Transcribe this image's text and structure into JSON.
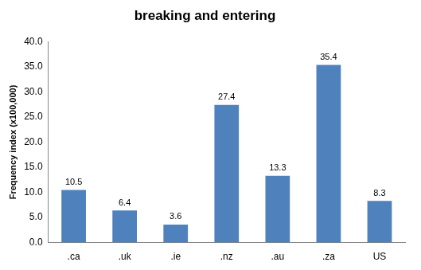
{
  "chart_data": {
    "type": "bar",
    "title": "breaking and entering",
    "y_label": "Frequency index (x100,000)",
    "categories": [
      ".ca",
      ".uk",
      ".ie",
      ".nz",
      ".au",
      ".za",
      "US"
    ],
    "values": [
      10.5,
      6.4,
      3.6,
      27.4,
      13.3,
      35.4,
      8.3
    ],
    "color": "#4f81bd",
    "ylim": [
      0,
      40
    ],
    "yticks": [
      {
        "value": 0,
        "label": "0.0"
      },
      {
        "value": 5,
        "label": "5.0"
      },
      {
        "value": 10,
        "label": "10.0"
      },
      {
        "value": 15,
        "label": "15.0"
      },
      {
        "value": 20,
        "label": "20.0"
      },
      {
        "value": 25,
        "label": "25.0"
      },
      {
        "value": 30,
        "label": "30.0"
      },
      {
        "value": 35,
        "label": "35.0"
      },
      {
        "value": 40,
        "label": "40.0"
      }
    ],
    "grid": false,
    "data_labels": true
  }
}
